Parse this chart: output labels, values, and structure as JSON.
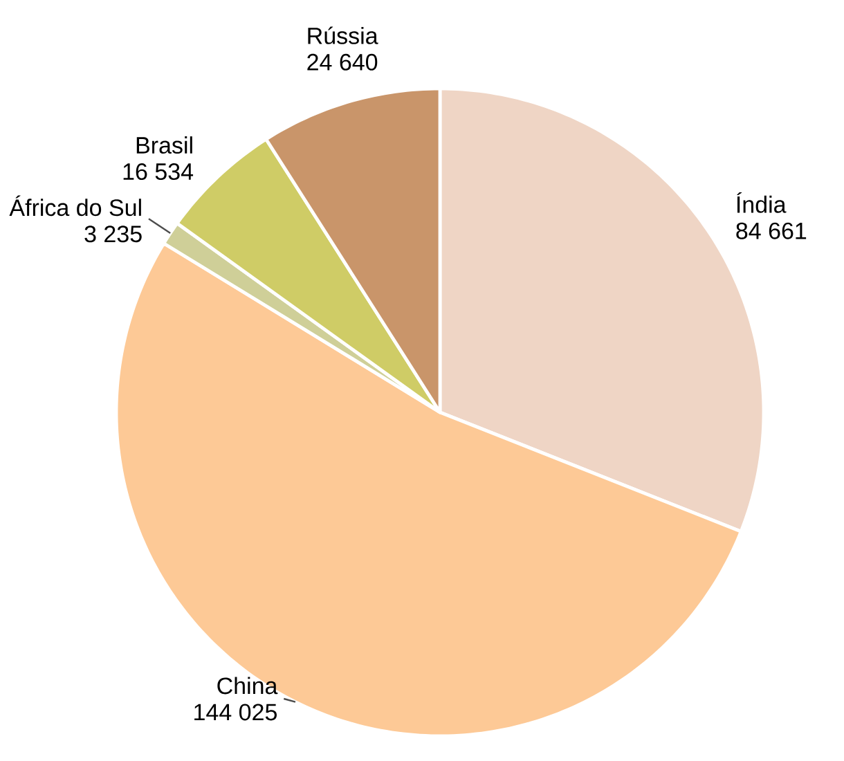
{
  "chart_data": {
    "type": "pie",
    "categories": [
      "Índia",
      "China",
      "África do Sul",
      "Brasil",
      "Rússia"
    ],
    "values": [
      84661,
      144025,
      3235,
      16534,
      24640
    ],
    "value_labels": [
      "84 661",
      "144 025",
      "3 235",
      "16 534",
      "24 640"
    ],
    "colors": [
      "#efd5c5",
      "#fdc996",
      "#cfcf98",
      "#cfcc66",
      "#c9956a"
    ]
  }
}
